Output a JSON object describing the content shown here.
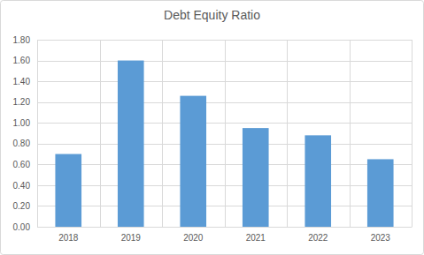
{
  "chart_data": {
    "type": "bar",
    "title": "Debt Equity Ratio",
    "categories": [
      "2018",
      "2019",
      "2020",
      "2021",
      "2022",
      "2023"
    ],
    "values": [
      0.7,
      1.6,
      1.26,
      0.95,
      0.88,
      0.65
    ],
    "color": "#5b9bd5",
    "ylim": [
      0,
      1.8
    ],
    "yticks": [
      {
        "value": 0,
        "label": "0.00"
      },
      {
        "value": 0.2,
        "label": "0.20"
      },
      {
        "value": 0.4,
        "label": "0.40"
      },
      {
        "value": 0.6,
        "label": "0.60"
      },
      {
        "value": 0.8,
        "label": "0.80"
      },
      {
        "value": 1.0,
        "label": "1.00"
      },
      {
        "value": 1.2,
        "label": "1.20"
      },
      {
        "value": 1.4,
        "label": "1.40"
      },
      {
        "value": 1.6,
        "label": "1.60"
      },
      {
        "value": 1.8,
        "label": "1.80"
      }
    ],
    "grid": true
  }
}
